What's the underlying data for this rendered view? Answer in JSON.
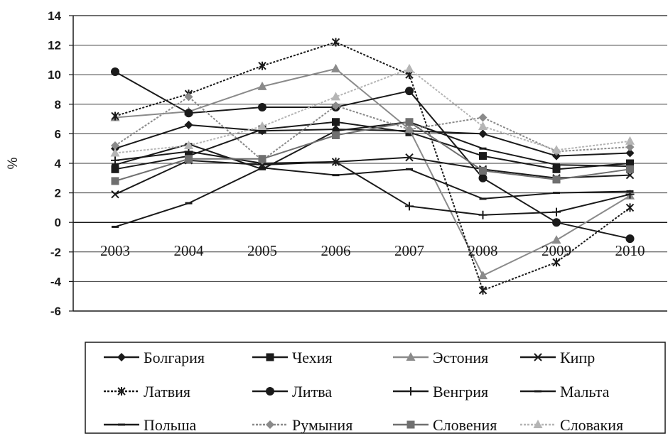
{
  "chart_data": {
    "type": "line",
    "ylabel": "%",
    "xlabel": "",
    "title": "",
    "ylim": [
      -6,
      14
    ],
    "yticks": [
      -6,
      -4,
      -2,
      0,
      2,
      4,
      6,
      8,
      10,
      12,
      14
    ],
    "ytick_labels": [
      "-6",
      "-4",
      "-2",
      "0",
      "2",
      "4",
      "6",
      "8",
      "10",
      "12",
      "14"
    ],
    "categories": [
      "2003",
      "2004",
      "2005",
      "2006",
      "2007",
      "2008",
      "2009",
      "2010"
    ],
    "grid": "horizontal",
    "legend_position": "bottom",
    "series": [
      {
        "name": "Болгария",
        "color": "#1a1a1a",
        "marker": "diamond",
        "dash": "",
        "values": [
          5.0,
          6.6,
          6.2,
          6.3,
          6.2,
          6.0,
          4.5,
          4.7
        ]
      },
      {
        "name": "Чехия",
        "color": "#1a1a1a",
        "marker": "square",
        "dash": "",
        "values": [
          3.6,
          4.5,
          6.3,
          6.8,
          6.1,
          4.5,
          3.6,
          4.0
        ]
      },
      {
        "name": "Эстония",
        "color": "#8a8a8a",
        "marker": "triangle",
        "dash": "",
        "values": [
          7.1,
          7.5,
          9.2,
          10.4,
          6.3,
          -3.6,
          -1.2,
          1.8
        ]
      },
      {
        "name": "Кипр",
        "color": "#1a1a1a",
        "marker": "x",
        "dash": "",
        "values": [
          1.9,
          4.2,
          3.9,
          4.1,
          4.4,
          3.6,
          3.0,
          3.2
        ]
      },
      {
        "name": "Латвия",
        "color": "#1a1a1a",
        "marker": "star",
        "dash": "3,2",
        "values": [
          7.2,
          8.7,
          10.6,
          12.2,
          10.0,
          -4.6,
          -2.7,
          1.0
        ]
      },
      {
        "name": "Литва",
        "color": "#1a1a1a",
        "marker": "circle",
        "dash": "",
        "values": [
          10.2,
          7.4,
          7.8,
          7.8,
          8.9,
          3.0,
          0.0,
          -1.1
        ]
      },
      {
        "name": "Венгрия",
        "color": "#1a1a1a",
        "marker": "plus",
        "dash": "",
        "values": [
          4.2,
          4.8,
          4.0,
          4.1,
          1.1,
          0.5,
          0.7,
          1.9
        ]
      },
      {
        "name": "Мальта",
        "color": "#1a1a1a",
        "marker": "dash",
        "dash": "",
        "values": [
          -0.3,
          1.3,
          3.7,
          3.2,
          3.6,
          1.6,
          2.0,
          2.1
        ]
      },
      {
        "name": "Польша",
        "color": "#1a1a1a",
        "marker": "dash",
        "dash": "",
        "values": [
          3.9,
          5.3,
          3.6,
          6.2,
          6.8,
          5.0,
          3.9,
          3.8
        ]
      },
      {
        "name": "Румыния",
        "color": "#8a8a8a",
        "marker": "diamond",
        "dash": "3,2",
        "values": [
          5.2,
          8.5,
          4.2,
          7.9,
          6.3,
          7.1,
          4.8,
          5.1
        ]
      },
      {
        "name": "Словения",
        "color": "#6f6f6f",
        "marker": "square",
        "dash": "",
        "values": [
          2.8,
          4.3,
          4.3,
          5.9,
          6.8,
          3.5,
          2.9,
          3.6
        ]
      },
      {
        "name": "Словакия",
        "color": "#b5b5b5",
        "marker": "triangle",
        "dash": "3,2",
        "values": [
          4.7,
          5.2,
          6.5,
          8.5,
          10.4,
          6.5,
          4.9,
          5.5
        ]
      }
    ]
  }
}
